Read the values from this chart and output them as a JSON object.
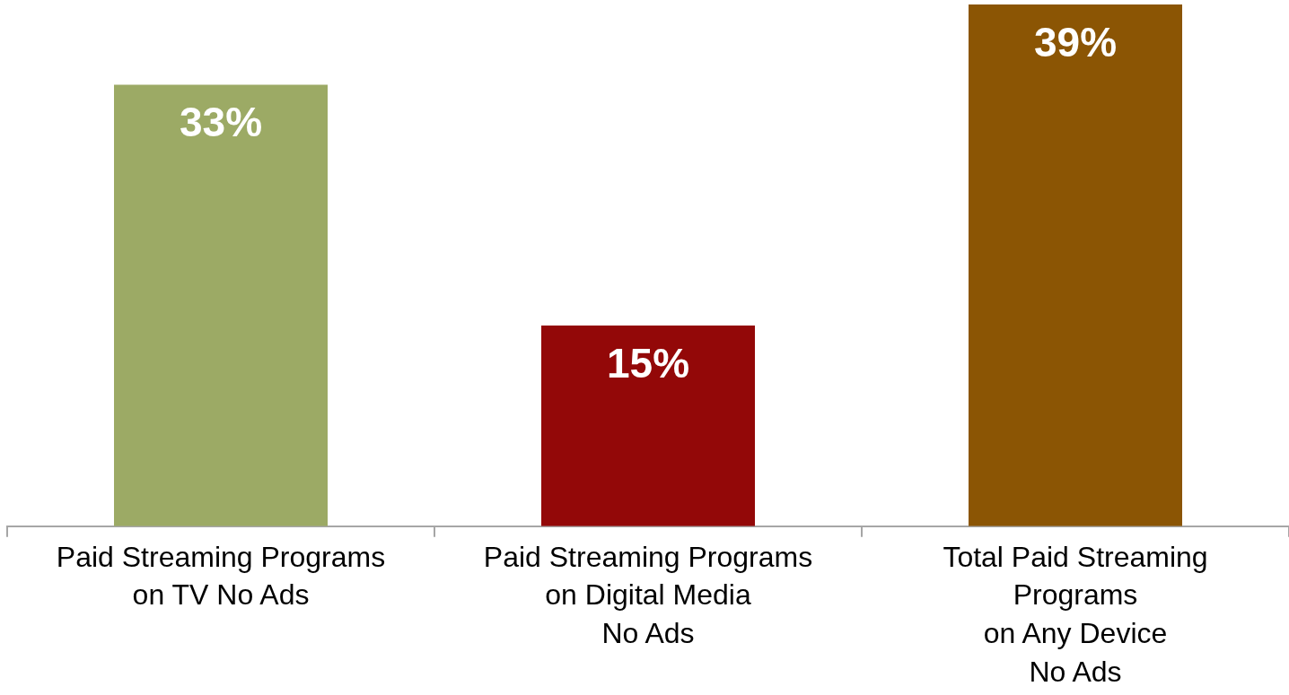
{
  "chart_data": {
    "type": "bar",
    "categories": [
      "Paid Streaming Programs\non TV No Ads",
      "Paid Streaming Programs\non Digital Media\nNo Ads",
      "Total Paid Streaming\nPrograms\non Any Device\nNo Ads"
    ],
    "values": [
      33,
      15,
      39
    ],
    "colors": [
      "#9caa65",
      "#930808",
      "#8b5504"
    ],
    "value_labels": [
      "33%",
      "15%",
      "39%"
    ],
    "grid": false,
    "legend": false
  }
}
